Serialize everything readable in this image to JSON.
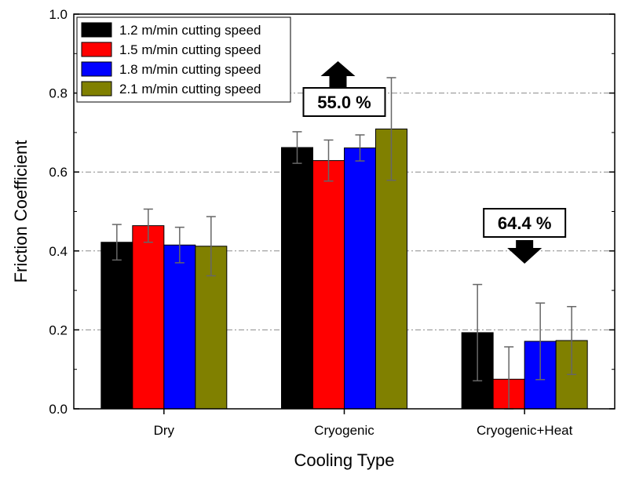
{
  "chart_data": {
    "type": "bar",
    "title": "",
    "xlabel": "Cooling Type",
    "ylabel": "Friction Coefficient",
    "ylim": [
      0,
      1.0
    ],
    "yticks": [
      "0.0",
      "0.2",
      "0.4",
      "0.6",
      "0.8",
      "1.0"
    ],
    "grid": true,
    "legend_position": "top-left",
    "categories": [
      "Dry",
      "Cryogenic",
      "Cryogenic+Heat"
    ],
    "series": [
      {
        "name": "1.2 m/min cutting speed",
        "color": "#000000",
        "values": [
          0.422,
          0.662,
          0.193
        ],
        "errors": [
          0.045,
          0.04,
          0.122
        ]
      },
      {
        "name": "1.5 m/min cutting speed",
        "color": "#ff0000",
        "values": [
          0.464,
          0.629,
          0.075
        ],
        "errors": [
          0.042,
          0.052,
          0.082
        ]
      },
      {
        "name": "1.8 m/min cutting speed",
        "color": "#0000ff",
        "values": [
          0.415,
          0.661,
          0.171
        ],
        "errors": [
          0.045,
          0.033,
          0.097
        ]
      },
      {
        "name": "2.1 m/min cutting speed",
        "color": "#808000",
        "values": [
          0.412,
          0.709,
          0.173
        ],
        "errors": [
          0.075,
          0.13,
          0.086
        ]
      }
    ],
    "annotations": [
      {
        "text": "55.0 %",
        "category": "Cryogenic",
        "direction": "up"
      },
      {
        "text": "64.4 %",
        "category": "Cryogenic+Heat",
        "direction": "down"
      }
    ]
  }
}
